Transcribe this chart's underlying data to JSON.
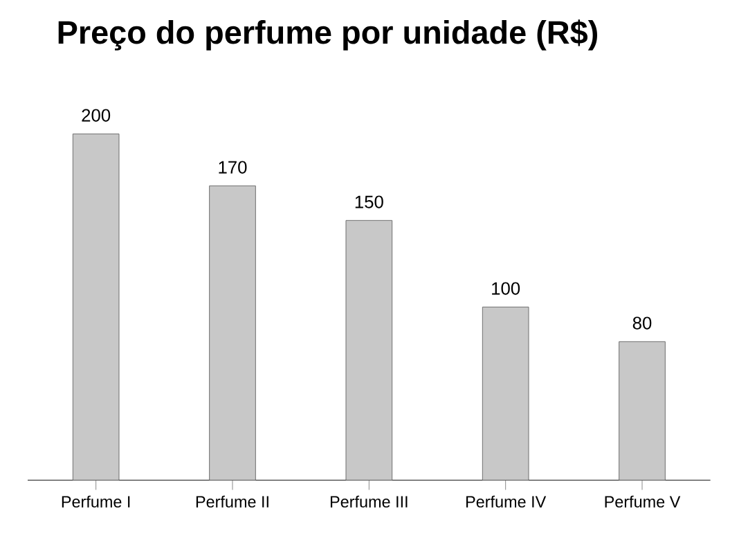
{
  "chart_data": {
    "type": "bar",
    "title": "Preço do perfume por unidade (R$)",
    "categories": [
      "Perfume I",
      "Perfume II",
      "Perfume III",
      "Perfume IV",
      "Perfume V"
    ],
    "values": [
      200,
      170,
      150,
      100,
      80
    ],
    "color": "#c8c8c8",
    "data_labels": true
  }
}
